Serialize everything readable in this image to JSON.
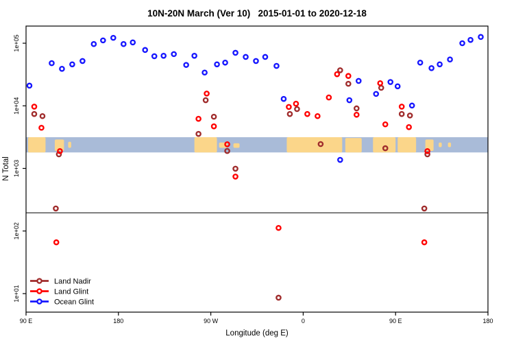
{
  "title": "10N-20N March (Ver 10)   2015-01-01 to 2020-12-18",
  "legend": {
    "items": [
      {
        "label": "Land Nadir",
        "color": "#A02C2C"
      },
      {
        "label": "Land Glint",
        "color": "#FF0000"
      },
      {
        "label": "Ocean Glint",
        "color": "#1616FF"
      }
    ]
  },
  "chart_data": {
    "type": "scatter",
    "title": "10N-20N March (Ver 10)   2015-01-01 to 2020-12-18",
    "xlabel": "Longitude (deg E)",
    "ylabel": "N Total",
    "x_axis": {
      "range": [
        90,
        540
      ],
      "ticks": [
        90,
        180,
        270,
        360,
        450,
        540
      ],
      "tick_labels": [
        "90 E",
        "180",
        "90 W",
        "0",
        "90 E",
        "180"
      ],
      "note": "longitude increases eastward from 90E and wraps past the dateline"
    },
    "y_axis": {
      "scale": "log",
      "range": [
        10,
        100000
      ],
      "ticks": [
        100000,
        10000,
        1000,
        100,
        10
      ],
      "tick_labels": [
        "1e+05",
        "1e+04",
        "1e+03",
        "1e+02",
        "1e+01"
      ]
    },
    "reference_line_y": 195,
    "map_band": {
      "value_range": [
        1800,
        3150
      ],
      "ocean_color": "#A9BBD8",
      "land_color": "#FBD68A",
      "land_segments": [
        {
          "lon": [
            92,
            109
          ],
          "top": 0,
          "bottom": 0
        },
        {
          "lon": [
            118,
            127
          ],
          "top": 0.15,
          "bottom": 0.1
        },
        {
          "lon": [
            131,
            134
          ],
          "top": 0.3,
          "bottom": 0.3
        },
        {
          "lon": [
            254,
            276
          ],
          "top": 0,
          "bottom": 0
        },
        {
          "lon": [
            278,
            286
          ],
          "top": 0.35,
          "bottom": 0.3
        },
        {
          "lon": [
            292,
            298
          ],
          "top": 0.4,
          "bottom": 0.3
        },
        {
          "lon": [
            344,
            398
          ],
          "top": 0,
          "bottom": 0
        },
        {
          "lon": [
            401,
            417
          ],
          "top": 0.05,
          "bottom": 0
        },
        {
          "lon": [
            428,
            450
          ],
          "top": 0,
          "bottom": 0
        },
        {
          "lon": [
            452,
            470
          ],
          "top": 0,
          "bottom": 0
        },
        {
          "lon": [
            479,
            487
          ],
          "top": 0.15,
          "bottom": 0.1
        },
        {
          "lon": [
            492,
            495
          ],
          "top": 0.35,
          "bottom": 0.35
        },
        {
          "lon": [
            501,
            504
          ],
          "top": 0.35,
          "bottom": 0.35
        }
      ]
    },
    "series": [
      {
        "name": "Land Nadir",
        "color": "#A02C2C",
        "points": [
          [
            98,
            7400
          ],
          [
            106,
            6850
          ],
          [
            119,
            229
          ],
          [
            122,
            1680
          ],
          [
            258,
            3560
          ],
          [
            265,
            12300
          ],
          [
            273,
            6700
          ],
          [
            286,
            1900
          ],
          [
            294,
            990
          ],
          [
            336,
            8.6
          ],
          [
            347,
            7400
          ],
          [
            354,
            8870
          ],
          [
            377,
            2450
          ],
          [
            396,
            37000
          ],
          [
            404,
            22500
          ],
          [
            412,
            9100
          ],
          [
            436,
            19400
          ],
          [
            440,
            2100
          ],
          [
            456,
            7400
          ],
          [
            464,
            7000
          ],
          [
            478,
            229
          ],
          [
            481,
            1680
          ]
        ]
      },
      {
        "name": "Land Glint",
        "color": "#FF0000",
        "points": [
          [
            98,
            9700
          ],
          [
            105,
            4460
          ],
          [
            119.5,
            66
          ],
          [
            123,
            1890
          ],
          [
            258,
            6200
          ],
          [
            266,
            15700
          ],
          [
            273,
            4700
          ],
          [
            286,
            2430
          ],
          [
            294,
            740
          ],
          [
            336,
            112
          ],
          [
            346,
            9600
          ],
          [
            353,
            10800
          ],
          [
            364,
            7400
          ],
          [
            374,
            6850
          ],
          [
            385,
            13600
          ],
          [
            393,
            32000
          ],
          [
            404,
            30000
          ],
          [
            412,
            7200
          ],
          [
            435,
            23000
          ],
          [
            440,
            5060
          ],
          [
            456,
            9700
          ],
          [
            463,
            4570
          ],
          [
            478,
            66
          ],
          [
            481,
            1890
          ]
        ]
      },
      {
        "name": "Ocean Glint",
        "color": "#1616FF",
        "points": [
          [
            93.3,
            21000
          ],
          [
            115,
            48000
          ],
          [
            125,
            39000
          ],
          [
            135,
            46000
          ],
          [
            145,
            52000
          ],
          [
            156,
            97000
          ],
          [
            165,
            111000
          ],
          [
            175,
            122000
          ],
          [
            185,
            97000
          ],
          [
            194,
            103000
          ],
          [
            206,
            78000
          ],
          [
            215,
            62000
          ],
          [
            224,
            63000
          ],
          [
            234,
            67000
          ],
          [
            246,
            45000
          ],
          [
            254,
            63000
          ],
          [
            264,
            34000
          ],
          [
            276,
            46000
          ],
          [
            284,
            49000
          ],
          [
            294,
            70300
          ],
          [
            304,
            60400
          ],
          [
            314,
            52000
          ],
          [
            323,
            60400
          ],
          [
            334,
            43400
          ],
          [
            341,
            12900
          ],
          [
            396,
            1370
          ],
          [
            405,
            12300
          ],
          [
            414,
            25000
          ],
          [
            431,
            15500
          ],
          [
            445,
            24000
          ],
          [
            452,
            20500
          ],
          [
            466,
            10100
          ],
          [
            474,
            49000
          ],
          [
            485,
            40000
          ],
          [
            493,
            46000
          ],
          [
            503,
            55000
          ],
          [
            515,
            100000
          ],
          [
            523,
            113000
          ],
          [
            533,
            126000
          ]
        ]
      }
    ]
  }
}
